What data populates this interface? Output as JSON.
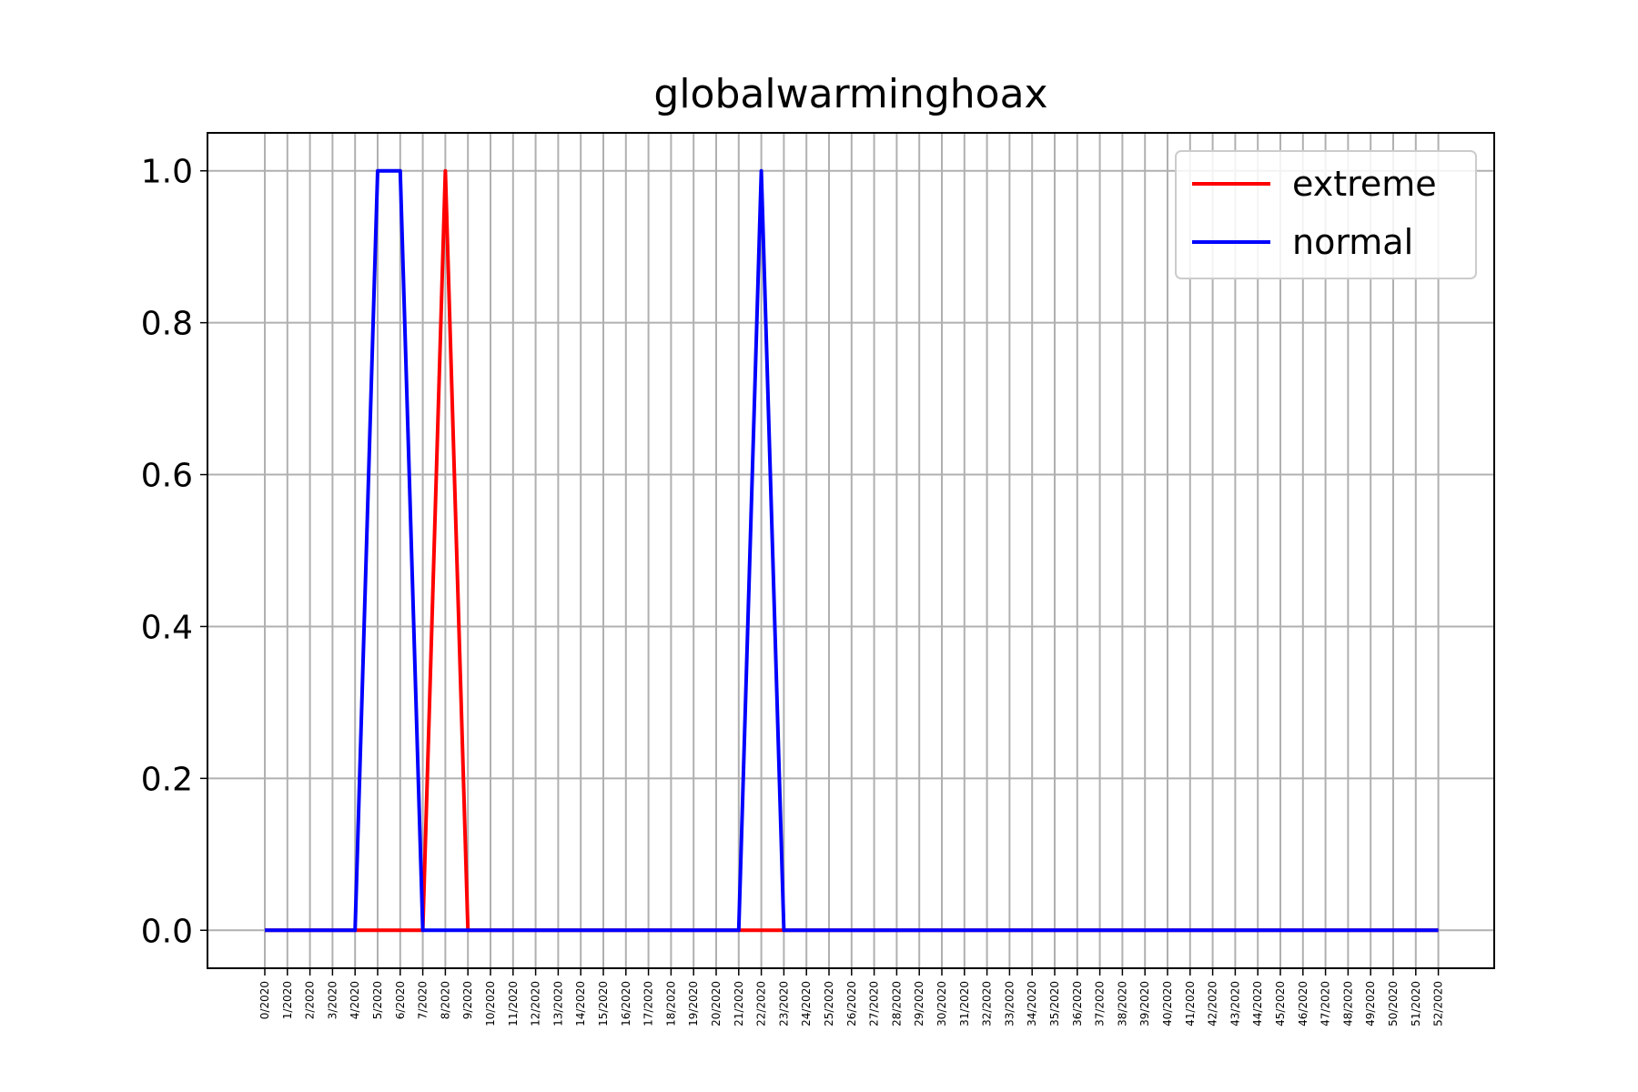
{
  "chart_data": {
    "type": "line",
    "title": "globalwarminghoax",
    "xlabel": "",
    "ylabel": "",
    "categories": [
      "0/2020",
      "1/2020",
      "2/2020",
      "3/2020",
      "4/2020",
      "5/2020",
      "6/2020",
      "7/2020",
      "8/2020",
      "9/2020",
      "10/2020",
      "11/2020",
      "12/2020",
      "13/2020",
      "14/2020",
      "15/2020",
      "16/2020",
      "17/2020",
      "18/2020",
      "19/2020",
      "20/2020",
      "21/2020",
      "22/2020",
      "23/2020",
      "24/2020",
      "25/2020",
      "26/2020",
      "27/2020",
      "28/2020",
      "29/2020",
      "30/2020",
      "31/2020",
      "32/2020",
      "33/2020",
      "34/2020",
      "35/2020",
      "36/2020",
      "37/2020",
      "38/2020",
      "39/2020",
      "40/2020",
      "41/2020",
      "42/2020",
      "43/2020",
      "44/2020",
      "45/2020",
      "46/2020",
      "47/2020",
      "48/2020",
      "49/2020",
      "50/2020",
      "51/2020",
      "52/2020"
    ],
    "series": [
      {
        "name": "extreme",
        "color": "#ff0000",
        "values": [
          0,
          0,
          0,
          0,
          0,
          0,
          0,
          0,
          1,
          0,
          0,
          0,
          0,
          0,
          0,
          0,
          0,
          0,
          0,
          0,
          0,
          0,
          0,
          0,
          0,
          0,
          0,
          0,
          0,
          0,
          0,
          0,
          0,
          0,
          0,
          0,
          0,
          0,
          0,
          0,
          0,
          0,
          0,
          0,
          0,
          0,
          0,
          0,
          0,
          0,
          0,
          0,
          0
        ]
      },
      {
        "name": "normal",
        "color": "#0000ff",
        "values": [
          0,
          0,
          0,
          0,
          0,
          1,
          1,
          0,
          0,
          0,
          0,
          0,
          0,
          0,
          0,
          0,
          0,
          0,
          0,
          0,
          0,
          0,
          1,
          0,
          0,
          0,
          0,
          0,
          0,
          0,
          0,
          0,
          0,
          0,
          0,
          0,
          0,
          0,
          0,
          0,
          0,
          0,
          0,
          0,
          0,
          0,
          0,
          0,
          0,
          0,
          0,
          0,
          0
        ]
      }
    ],
    "ylim": [
      -0.05,
      1.05
    ],
    "yticks": [
      "0.0",
      "0.2",
      "0.4",
      "0.6",
      "0.8",
      "1.0"
    ],
    "grid": true,
    "legend_position": "top-right"
  }
}
